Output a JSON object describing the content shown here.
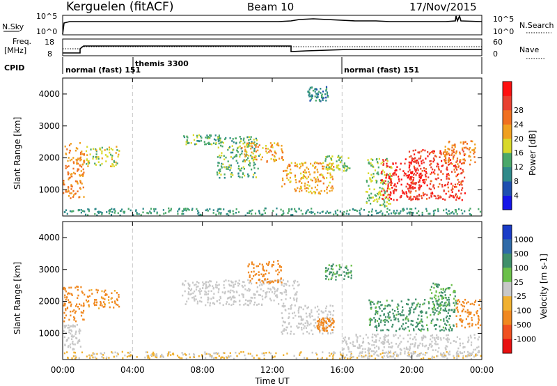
{
  "header": {
    "station": "Kerguelen (fitACF)",
    "beam": "Beam 10",
    "date": "17/Nov/2015"
  },
  "nsky_panel": {
    "left_label": "N.Sky",
    "right_label": "N.Search",
    "ticks_left": [
      "10^5",
      "10^0"
    ],
    "ticks_right": [
      "10^5",
      "10^0"
    ]
  },
  "freq_panel": {
    "left_label_line1": "Freq.",
    "left_label_line2": "[MHz]",
    "right_label": "Nave",
    "ticks_left": [
      "18",
      "8"
    ],
    "ticks_right": [
      "60",
      "0"
    ]
  },
  "cpid": {
    "label": "CPID",
    "segments": [
      {
        "text": "normal (fast) 151"
      },
      {
        "text": "themis 3300"
      },
      {
        "text": "normal (fast) 151"
      }
    ]
  },
  "x_axis": {
    "label": "Time UT",
    "tick_labels": [
      "00:00",
      "04:00",
      "08:00",
      "12:00",
      "16:00",
      "20:00",
      "00:00"
    ],
    "range_hours": [
      0,
      24
    ],
    "mode_changes_hours": [
      4,
      16
    ]
  },
  "chart_data": [
    {
      "type": "heatmap",
      "name": "power",
      "ylabel": "Slant Range [km]",
      "y_ticks": [
        "1000",
        "2000",
        "3000",
        "4000"
      ],
      "ylim": [
        180,
        4500
      ],
      "colorbar": {
        "label": "Power [dB]",
        "ticks": [
          "4",
          "8",
          "12",
          "16",
          "20",
          "24",
          "28"
        ],
        "colors": [
          "#1515e8",
          "#1e4fb0",
          "#2f8a8a",
          "#4aa86a",
          "#d9d92a",
          "#f0a020",
          "#f07020",
          "#e84030",
          "#ff1010"
        ]
      },
      "regions": [
        {
          "x": [
            0.0,
            1.2
          ],
          "y": [
            750,
            2500
          ],
          "level": 20
        },
        {
          "x": [
            1.3,
            3.2
          ],
          "y": [
            1750,
            2400
          ],
          "level": 14
        },
        {
          "x": [
            0.0,
            24.0
          ],
          "y": [
            200,
            450
          ],
          "level": 8
        },
        {
          "x": [
            6.8,
            9.0
          ],
          "y": [
            2450,
            2750
          ],
          "level": 10
        },
        {
          "x": [
            8.8,
            11.2
          ],
          "y": [
            1400,
            2700
          ],
          "level": 10
        },
        {
          "x": [
            10.2,
            12.6
          ],
          "y": [
            1900,
            2500
          ],
          "level": 18
        },
        {
          "x": [
            12.5,
            15.5
          ],
          "y": [
            900,
            1900
          ],
          "level": 18
        },
        {
          "x": [
            15.0,
            16.4
          ],
          "y": [
            1600,
            2100
          ],
          "level": 12
        },
        {
          "x": [
            14.0,
            15.2
          ],
          "y": [
            3800,
            4250
          ],
          "level": 6
        },
        {
          "x": [
            17.3,
            18.8
          ],
          "y": [
            500,
            2000
          ],
          "level": 12
        },
        {
          "x": [
            18.2,
            20.5
          ],
          "y": [
            700,
            2000
          ],
          "level": 28
        },
        {
          "x": [
            19.8,
            23.0
          ],
          "y": [
            700,
            2300
          ],
          "level": 26
        },
        {
          "x": [
            21.8,
            23.6
          ],
          "y": [
            1800,
            2600
          ],
          "level": 20
        }
      ]
    },
    {
      "type": "heatmap",
      "name": "velocity",
      "ylabel": "Slant Range [km]",
      "y_ticks": [
        "1000",
        "2000",
        "3000",
        "4000"
      ],
      "ylim": [
        180,
        4500
      ],
      "colorbar": {
        "label": "Velocity [m s-1]",
        "ticks": [
          "1000",
          "500",
          "100",
          "25",
          "-25",
          "-100",
          "-500",
          "-1000"
        ],
        "colors": [
          "#1a3cc8",
          "#2f6aa8",
          "#3f8f6a",
          "#6bc04a",
          "#c8c8c8",
          "#f0b030",
          "#f08820",
          "#f05020",
          "#e81010"
        ]
      },
      "regions": [
        {
          "x": [
            0.0,
            1.2
          ],
          "y": [
            1400,
            2500
          ],
          "level": -200
        },
        {
          "x": [
            1.3,
            3.2
          ],
          "y": [
            1800,
            2400
          ],
          "level": -150
        },
        {
          "x": [
            0.0,
            1.0
          ],
          "y": [
            500,
            1300
          ],
          "level": 0
        },
        {
          "x": [
            0.0,
            24.0
          ],
          "y": [
            200,
            450
          ],
          "level": -30
        },
        {
          "x": [
            6.8,
            13.5
          ],
          "y": [
            1900,
            2700
          ],
          "level": 0
        },
        {
          "x": [
            10.5,
            12.5
          ],
          "y": [
            2600,
            3300
          ],
          "level": -200
        },
        {
          "x": [
            12.5,
            15.5
          ],
          "y": [
            1000,
            1900
          ],
          "level": 0
        },
        {
          "x": [
            14.5,
            15.5
          ],
          "y": [
            1100,
            1500
          ],
          "level": -200
        },
        {
          "x": [
            15.0,
            16.5
          ],
          "y": [
            2700,
            3200
          ],
          "level": 120
        },
        {
          "x": [
            17.5,
            22.5
          ],
          "y": [
            1100,
            2100
          ],
          "level": 150
        },
        {
          "x": [
            21.0,
            22.5
          ],
          "y": [
            1700,
            2600
          ],
          "level": 100
        },
        {
          "x": [
            16.0,
            24.0
          ],
          "y": [
            300,
            1000
          ],
          "level": 0
        },
        {
          "x": [
            22.5,
            24.0
          ],
          "y": [
            1200,
            2100
          ],
          "level": -200
        }
      ]
    }
  ]
}
